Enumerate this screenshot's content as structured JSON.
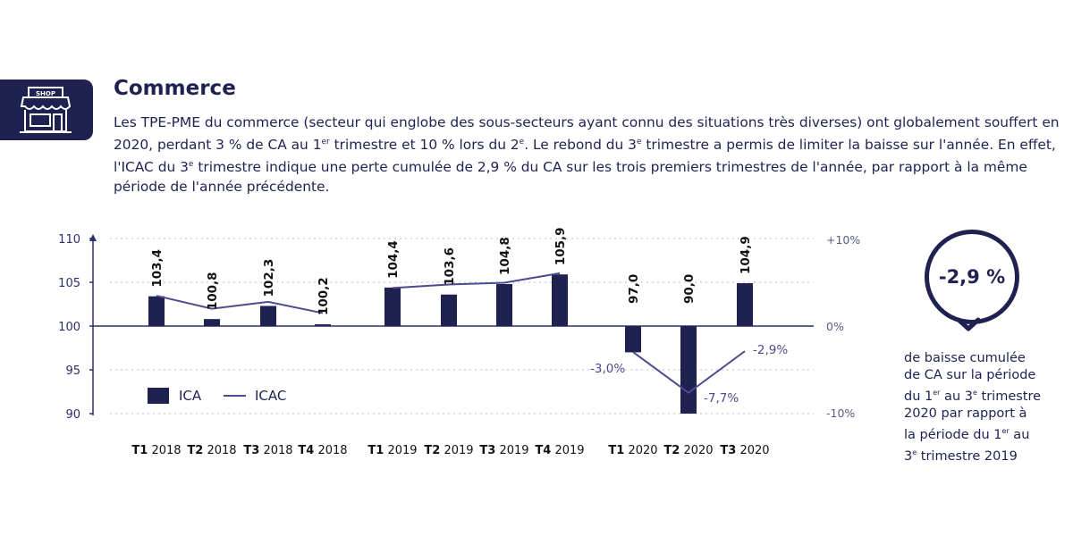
{
  "header": {
    "icon_label": "SHOP",
    "title": "Commerce"
  },
  "paragraph": {
    "p1": "Les TPE-PME du commerce (secteur qui englobe des sous-secteurs ayant connu des situations très diverses) ont globalement souffert en 2020, perdant 3 % de CA au 1",
    "sup1": "er",
    "p2": " trimestre et 10 % lors du 2",
    "sup2": "e",
    "p3": ". Le rebond du 3",
    "sup3": "e",
    "p4": " trimestre a permis de limiter la baisse sur l'année. En effet, l'ICAC du 3",
    "sup4": "e",
    "p5": " trimestre indique une perte cumulée de 2,9 % du CA sur les trois premiers trimestres de l'année, par rapport à la même période de l'année précédente."
  },
  "chart_data": {
    "type": "bar",
    "categories": [
      "T1 2018",
      "T2 2018",
      "T3 2018",
      "T4 2018",
      "T1 2019",
      "T2 2019",
      "T3 2019",
      "T4 2019",
      "T1 2020",
      "T2 2020",
      "T3 2020"
    ],
    "category_parts": [
      [
        "T1",
        "2018"
      ],
      [
        "T2",
        "2018"
      ],
      [
        "T3",
        "2018"
      ],
      [
        "T4",
        "2018"
      ],
      [
        "T1",
        "2019"
      ],
      [
        "T2",
        "2019"
      ],
      [
        "T3",
        "2019"
      ],
      [
        "T4",
        "2019"
      ],
      [
        "T1",
        "2020"
      ],
      [
        "T2",
        "2020"
      ],
      [
        "T3",
        "2020"
      ]
    ],
    "series": [
      {
        "name": "ICA",
        "values": [
          103.4,
          100.8,
          102.3,
          100.2,
          104.4,
          103.6,
          104.8,
          105.9,
          97.0,
          90.0,
          104.9
        ],
        "labels": [
          "103,4",
          "100,8",
          "102,3",
          "100,2",
          "104,4",
          "103,6",
          "104,8",
          "105,9",
          "97,0",
          "90,0",
          "104,9"
        ]
      },
      {
        "name": "ICAC",
        "values": [
          3.5,
          2.0,
          2.8,
          1.5,
          4.4,
          4.8,
          5.0,
          6.1,
          -3.0,
          -7.7,
          -2.9
        ]
      }
    ],
    "icac_labels": [
      {
        "index": 8,
        "text": "-3,0%"
      },
      {
        "index": 9,
        "text": "-7,7%"
      },
      {
        "index": 10,
        "text": "-2,9%"
      }
    ],
    "y_left": {
      "ticks": [
        110,
        105,
        100,
        95,
        90
      ],
      "ylim": [
        90,
        110
      ]
    },
    "y_right": {
      "ticks": [
        "+10%",
        "0%",
        "-10%"
      ],
      "values": [
        10,
        0,
        -10
      ]
    },
    "grid": "dotted",
    "legend_position": "bottom-left",
    "colors": {
      "bar": "#1f2251",
      "line": "#4e4a8e",
      "grid": "#c9c9d6",
      "axis": "#2b2f6b"
    }
  },
  "callout": {
    "value": "-2,9 %",
    "line1": "de baisse cumulée",
    "line2": "de CA sur la période",
    "line3a": "du 1",
    "line3sup": "er",
    "line3b": " au 3",
    "line3sup2": "e",
    "line3c": " trimestre",
    "line4": "2020 par rapport à",
    "line5a": "la période du 1",
    "line5sup": "er",
    "line5b": " au",
    "line6a": "3",
    "line6sup": "e",
    "line6b": " trimestre 2019"
  }
}
